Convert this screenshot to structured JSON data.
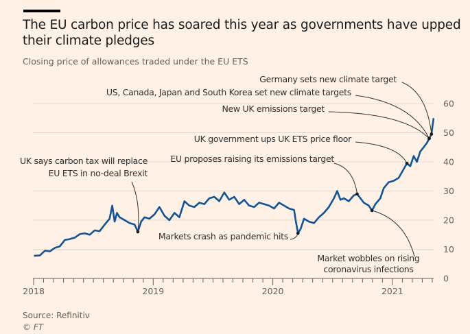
{
  "header": {
    "title": "The EU carbon price has soared this year as governments have upped their climate pledges",
    "subtitle": "Closing price of allowances traded under the EU ETS"
  },
  "footer": {
    "source": "Source: Refinitiv",
    "credit": "© FT"
  },
  "colors": {
    "background": "#FFF1E5",
    "line": "#0F5499",
    "grid": "#E6D9CE",
    "annotation": "#33302e"
  },
  "chart_data": {
    "type": "line",
    "title": "The EU carbon price has soared this year as governments have upped their climate pledges",
    "subtitle": "Closing price of allowances traded under the EU ETS",
    "xlabel": "",
    "ylabel": "",
    "ylim": [
      0,
      60
    ],
    "yticks": [
      0,
      10,
      20,
      30,
      40,
      50,
      60
    ],
    "xticks": [
      "2018",
      "2019",
      "2020",
      "2021"
    ],
    "grid": true,
    "y_axis_position": "right",
    "series": [
      {
        "dates": [
          "2018-01-02",
          "2018-01-20",
          "2018-02-05",
          "2018-02-20",
          "2018-03-05",
          "2018-03-20",
          "2018-04-05",
          "2018-04-20",
          "2018-05-05",
          "2018-05-20",
          "2018-06-05",
          "2018-06-20",
          "2018-07-05",
          "2018-07-20",
          "2018-08-05",
          "2018-08-20",
          "2018-08-28",
          "2018-09-05",
          "2018-09-12",
          "2018-09-20",
          "2018-10-05",
          "2018-10-20",
          "2018-11-05",
          "2018-11-15",
          "2018-11-25",
          "2018-12-05",
          "2018-12-20",
          "2019-01-05",
          "2019-01-20",
          "2019-02-05",
          "2019-02-20",
          "2019-03-05",
          "2019-03-20",
          "2019-04-05",
          "2019-04-20",
          "2019-05-05",
          "2019-05-20",
          "2019-06-05",
          "2019-06-20",
          "2019-07-05",
          "2019-07-20",
          "2019-08-05",
          "2019-08-20",
          "2019-09-05",
          "2019-09-20",
          "2019-10-05",
          "2019-10-20",
          "2019-11-05",
          "2019-11-20",
          "2019-12-05",
          "2019-12-20",
          "2020-01-05",
          "2020-01-20",
          "2020-02-05",
          "2020-02-20",
          "2020-03-05",
          "2020-03-10",
          "2020-03-17",
          "2020-03-25",
          "2020-04-05",
          "2020-04-20",
          "2020-05-05",
          "2020-05-20",
          "2020-06-05",
          "2020-06-20",
          "2020-07-05",
          "2020-07-15",
          "2020-07-25",
          "2020-08-05",
          "2020-08-20",
          "2020-09-05",
          "2020-09-15",
          "2020-09-25",
          "2020-10-05",
          "2020-10-20",
          "2020-10-30",
          "2020-11-10",
          "2020-11-25",
          "2020-12-05",
          "2020-12-20",
          "2021-01-05",
          "2021-01-20",
          "2021-02-05",
          "2021-02-15",
          "2021-02-25",
          "2021-03-05",
          "2021-03-15",
          "2021-03-25",
          "2021-04-05",
          "2021-04-15",
          "2021-04-22",
          "2021-04-29",
          "2021-05-05"
        ],
        "values": [
          7.8,
          7.9,
          9.5,
          9.3,
          10.5,
          11.0,
          13.2,
          13.5,
          14.0,
          15.2,
          15.5,
          15.0,
          16.5,
          16.2,
          18.5,
          20.5,
          25.0,
          19.5,
          22.5,
          21.0,
          20.0,
          19.0,
          18.5,
          16.0,
          19.5,
          21.0,
          20.5,
          22.0,
          24.5,
          21.5,
          20.0,
          22.5,
          21.0,
          26.5,
          25.0,
          24.5,
          26.0,
          25.5,
          27.5,
          28.0,
          26.5,
          29.5,
          27.0,
          28.0,
          25.5,
          27.0,
          25.0,
          24.5,
          26.0,
          25.5,
          25.0,
          24.0,
          26.0,
          25.0,
          24.0,
          23.5,
          20.0,
          15.5,
          17.0,
          20.5,
          19.5,
          19.0,
          21.0,
          22.5,
          24.5,
          27.5,
          30.0,
          27.0,
          27.5,
          26.5,
          28.5,
          29.0,
          27.5,
          26.0,
          25.0,
          23.3,
          25.5,
          27.5,
          31.0,
          33.0,
          33.5,
          34.5,
          37.5,
          39.5,
          38.5,
          42.0,
          40.0,
          43.5,
          45.0,
          46.5,
          48.0,
          49.5,
          55.0
        ]
      }
    ],
    "annotations": [
      {
        "text": "Germany sets new climate target",
        "date": "2021-04-29"
      },
      {
        "text": "US, Canada, Japan and South Korea set new climate targets",
        "date": "2021-04-22"
      },
      {
        "text": "New UK emissions target",
        "date": "2021-04-22"
      },
      {
        "text": "UK government ups UK ETS price floor",
        "date": "2021-02-15"
      },
      {
        "text": "EU proposes raising its emissions target",
        "date": "2020-09-15"
      },
      {
        "text": "UK says carbon tax will replace EU ETS in no-deal Brexit",
        "date": "2018-11-15"
      },
      {
        "text": "Markets crash as pandemic hits",
        "date": "2020-03-17"
      },
      {
        "text": "Market wobbles on rising coronavirus infections",
        "date": "2020-10-30"
      }
    ]
  }
}
